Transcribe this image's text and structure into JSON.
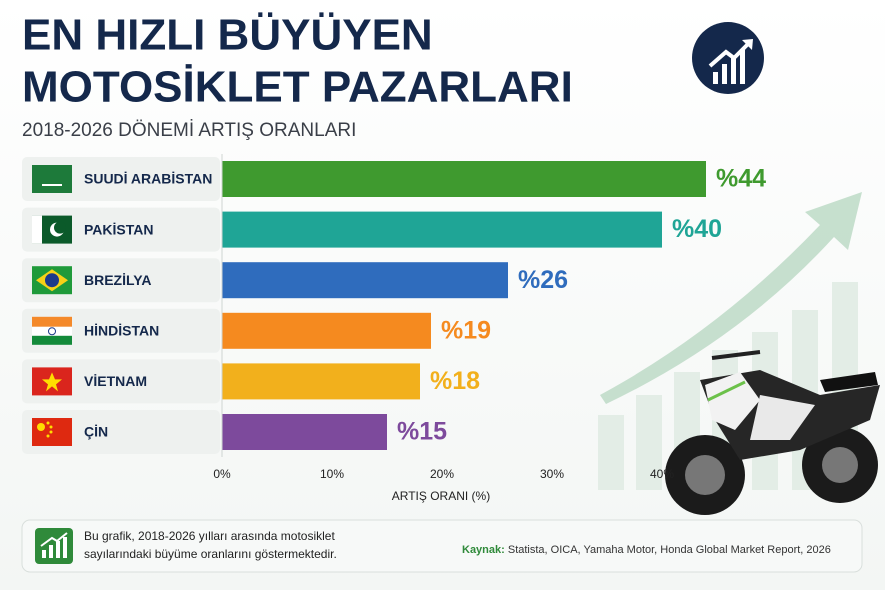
{
  "title_lines": [
    "EN HIZLI BÜYÜYEN",
    "MOTOSİKLET PAZARLARI"
  ],
  "chart_data": {
    "type": "bar",
    "orientation": "horizontal",
    "subtitle": "2018-2026 DÖNEMİ ARTIŞ ORANLARI",
    "x_label": "ARTIŞ ORANI (%)",
    "categories": [
      "SUUDİ ARABİSTAN",
      "PAKİSTAN",
      "BREZİLYA",
      "HİNDİSTAN",
      "VİETNAM",
      "ÇİN"
    ],
    "values": [
      44,
      40,
      26,
      19,
      18,
      15
    ],
    "value_labels": [
      "%44",
      "%40",
      "%26",
      "%19",
      "%18",
      "%15"
    ],
    "colors": [
      "#3f9a2f",
      "#1fa596",
      "#2f6cbd",
      "#f58a1f",
      "#f2b01c",
      "#7d4a9c"
    ],
    "xlim": [
      0,
      45
    ],
    "xticks": [
      {
        "value": 0,
        "label": "0%"
      },
      {
        "value": 10,
        "label": "10%"
      },
      {
        "value": 20,
        "label": "20%"
      },
      {
        "value": 30,
        "label": "30%"
      },
      {
        "value": 40,
        "label": "40%"
      }
    ],
    "grid": false
  },
  "footer": {
    "note_lines": [
      "Bu grafik, 2018-2026 yılları arasında motosiklet",
      "sayılarındaki büyüme oranlarını göstermektedir."
    ],
    "source_label": "Kaynak:",
    "source": "Statista, OICA, Yamaha Motor, Honda Global Market Report, 2026"
  }
}
